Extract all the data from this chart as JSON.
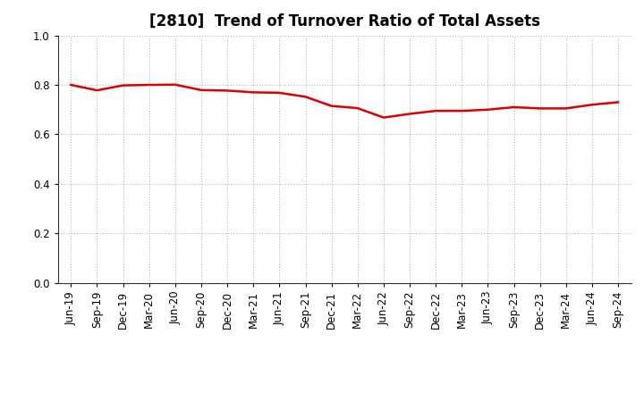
{
  "title": "[2810]  Trend of Turnover Ratio of Total Assets",
  "x_labels": [
    "Jun-19",
    "Sep-19",
    "Dec-19",
    "Mar-20",
    "Jun-20",
    "Sep-20",
    "Dec-20",
    "Mar-21",
    "Jun-21",
    "Sep-21",
    "Dec-21",
    "Mar-22",
    "Jun-22",
    "Sep-22",
    "Dec-22",
    "Mar-23",
    "Jun-23",
    "Sep-23",
    "Dec-23",
    "Mar-24",
    "Jun-24",
    "Sep-24"
  ],
  "values": [
    0.8,
    0.778,
    0.798,
    0.8,
    0.801,
    0.779,
    0.777,
    0.77,
    0.768,
    0.752,
    0.715,
    0.706,
    0.668,
    0.683,
    0.695,
    0.695,
    0.7,
    0.71,
    0.705,
    0.705,
    0.72,
    0.73
  ],
  "line_color": "#dd0000",
  "line_width": 1.8,
  "ylim": [
    0.0,
    1.0
  ],
  "yticks": [
    0.0,
    0.2,
    0.4,
    0.6,
    0.8,
    1.0
  ],
  "background_color": "#ffffff",
  "grid_color": "#aaaaaa",
  "title_fontsize": 12,
  "tick_fontsize": 8.5
}
